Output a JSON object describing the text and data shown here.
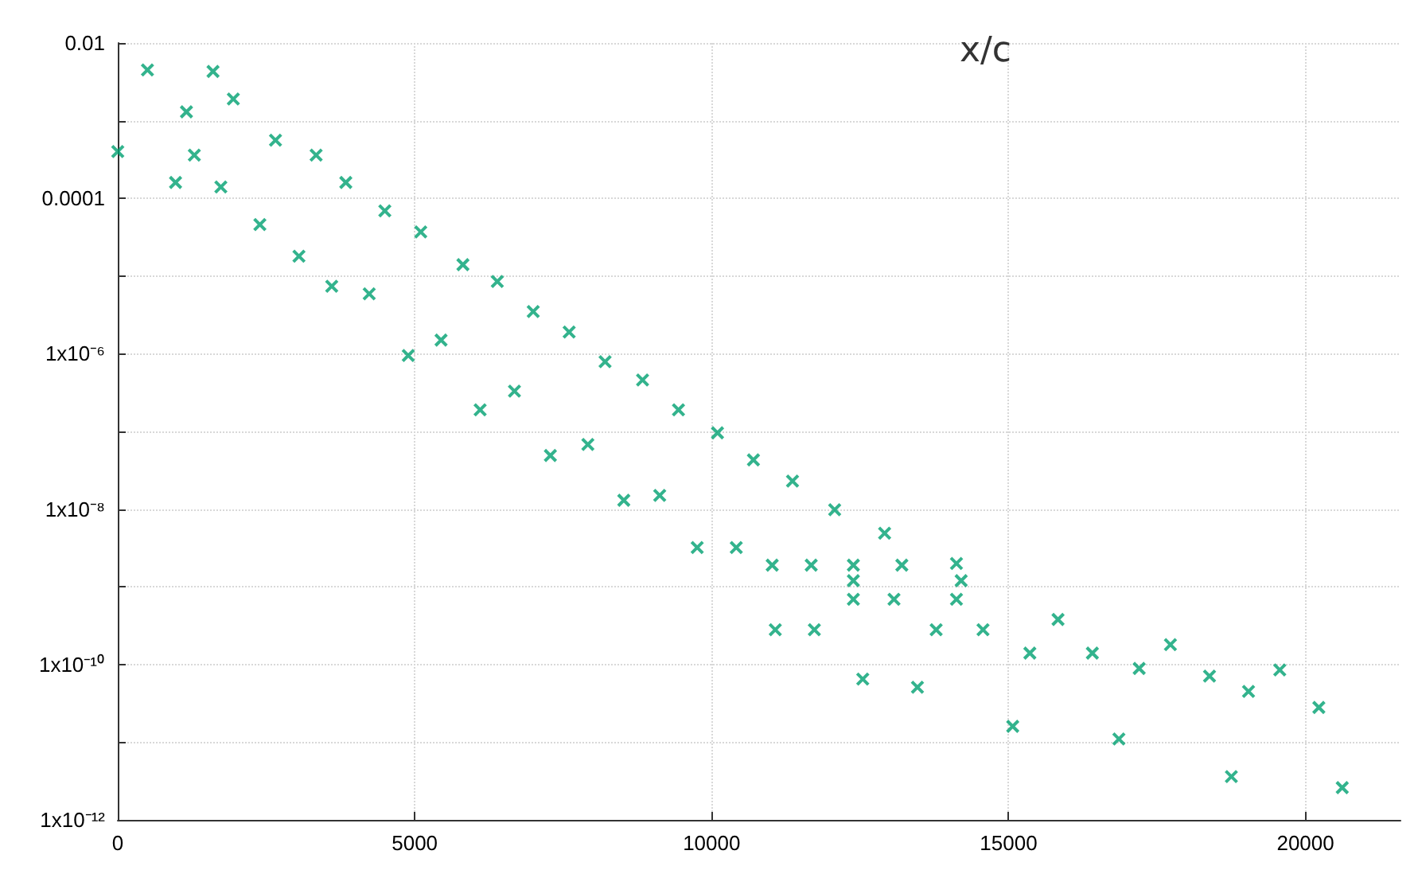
{
  "chart_data": {
    "type": "scatter",
    "title": "x/c",
    "log": "y",
    "grid": true,
    "marker": "cross",
    "xlim": [
      0,
      21600
    ],
    "xticks": [
      0,
      5000,
      10000,
      15000,
      20000
    ],
    "ylim": [
      1e-12,
      0.01
    ],
    "yticks": [
      {
        "value": 1e-12,
        "label": "1x10⁻¹²"
      },
      {
        "value": 1e-11,
        "label": null
      },
      {
        "value": 1e-10,
        "label": "1x10⁻¹⁰"
      },
      {
        "value": 1e-09,
        "label": null
      },
      {
        "value": 1e-08,
        "label": "1x10⁻⁸"
      },
      {
        "value": 1e-07,
        "label": null
      },
      {
        "value": 1e-06,
        "label": "1x10⁻⁶"
      },
      {
        "value": 1e-05,
        "label": null
      },
      {
        "value": 0.0001,
        "label": "0.0001"
      },
      {
        "value": 0.001,
        "label": null
      },
      {
        "value": 0.01,
        "label": "0.01"
      }
    ],
    "series": [
      {
        "color": "#00a070",
        "x": [
          0,
          500,
          973,
          1157,
          1289,
          1604,
          1736,
          1946,
          2393,
          2656,
          3051,
          3340,
          3603,
          3840,
          4234,
          4497,
          4892,
          5102,
          5444,
          5812,
          6102,
          6391,
          6680,
          6996,
          7285,
          7601,
          7916,
          8206,
          8521,
          8837,
          9126,
          9442,
          9757,
          10099,
          10415,
          10704,
          11020,
          11362,
          11677,
          12072,
          12387,
          12913,
          13203,
          11072,
          11730,
          12387,
          12545,
          13071,
          13466,
          13781,
          14123,
          14570,
          15070,
          15359,
          15833,
          16411,
          16858,
          17200,
          17726,
          18384,
          18752,
          19041,
          19567,
          20225,
          20619,
          14123,
          12387,
          14202
        ],
        "values": [
          0.0004,
          0.0045,
          0.00016,
          0.0013,
          0.00036,
          0.0043,
          0.00014,
          0.0019,
          4.6e-05,
          0.00056,
          1.8e-05,
          0.00036,
          7.4e-06,
          0.00016,
          5.9e-06,
          6.9e-05,
          9.5e-07,
          3.7e-05,
          1.5e-06,
          1.4e-05,
          1.9e-07,
          8.5e-06,
          3.3e-07,
          3.5e-06,
          4.9e-08,
          1.9e-06,
          6.8e-08,
          7.9e-07,
          1.3e-08,
          4.6e-07,
          1.5e-08,
          1.9e-07,
          3.2e-09,
          9.6e-08,
          3.2e-09,
          4.3e-08,
          1.9e-09,
          2.3e-08,
          1.9e-09,
          9.8e-09,
          1.9e-09,
          4.9e-09,
          1.9e-09,
          2.8e-10,
          2.8e-10,
          6.9e-10,
          6.5e-11,
          6.9e-10,
          5.1e-11,
          2.8e-10,
          6.9e-10,
          2.8e-10,
          1.6e-11,
          1.4e-10,
          3.8e-10,
          1.4e-10,
          1.1e-11,
          8.9e-11,
          1.8e-10,
          7.1e-11,
          3.6e-12,
          4.5e-11,
          8.5e-11,
          2.8e-11,
          2.6e-12,
          2e-09,
          1.2e-09,
          1.2e-09
        ]
      }
    ]
  }
}
